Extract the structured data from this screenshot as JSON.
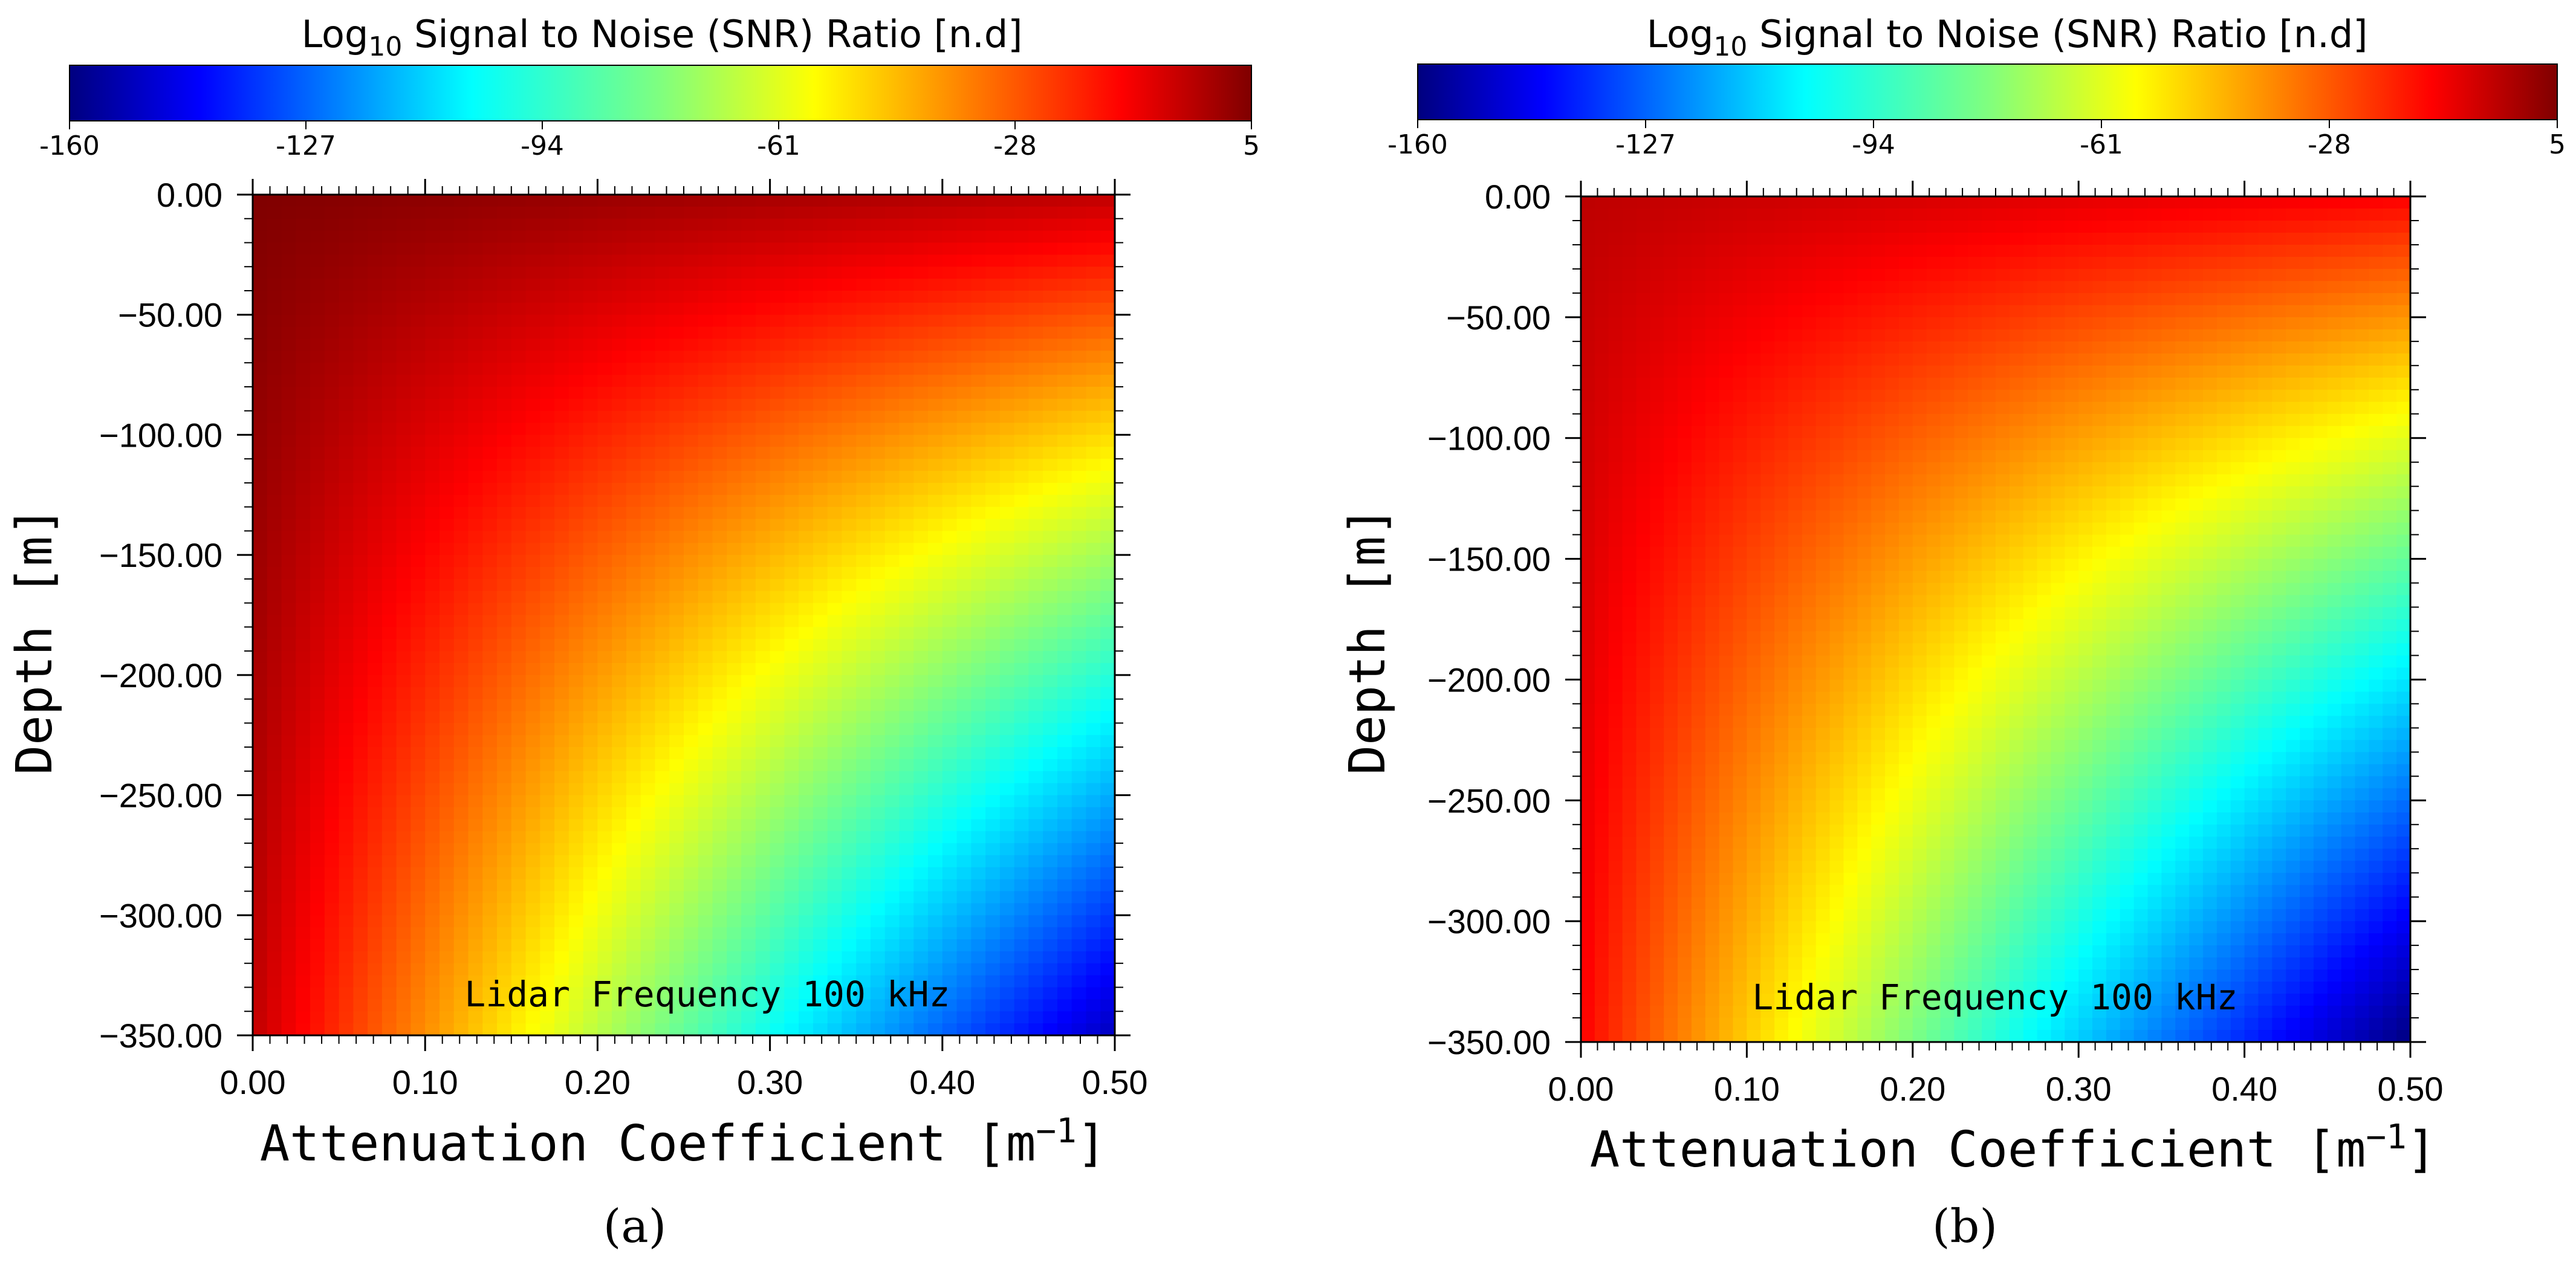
{
  "figure": {
    "panels": [
      {
        "id": "a",
        "caption": "(a)",
        "colorbar": {
          "title_prefix": "Log",
          "title_sub": "10",
          "title_rest": " Signal to Noise (SNR) Ratio [n.d]",
          "min": -160,
          "max": 5,
          "ticks": [
            "-160",
            "-127",
            "-94",
            "-61",
            "-28",
            "5"
          ]
        },
        "ylabel": "Depth [m]",
        "xlabel_main": "Attenuation Coefficient [m",
        "xlabel_sup": "−1",
        "xlabel_end": "]",
        "annotation": "Lidar Frequency 100 kHz"
      },
      {
        "id": "b",
        "caption": "(b)",
        "colorbar": {
          "title_prefix": "Log",
          "title_sub": "10",
          "title_rest": " Signal to Noise (SNR) Ratio [n.d]",
          "min": -160,
          "max": 5,
          "ticks": [
            "-160",
            "-127",
            "-94",
            "-61",
            "-28",
            "5"
          ]
        },
        "ylabel": "Depth [m]",
        "xlabel_main": "Attenuation Coefficient [m",
        "xlabel_sup": "−1",
        "xlabel_end": "]",
        "annotation": "Lidar Frequency 100 kHz"
      }
    ]
  },
  "chart_data": [
    {
      "type": "heatmap",
      "panel": "a",
      "title": "Log10 Signal to Noise (SNR) Ratio [n.d]",
      "xlabel": "Attenuation Coefficient [m−1]",
      "ylabel": "Depth [m]",
      "xlim": [
        0,
        0.5
      ],
      "ylim": [
        -350,
        0
      ],
      "x_ticks": [
        "0.00",
        "0.10",
        "0.20",
        "0.30",
        "0.40",
        "0.50"
      ],
      "y_ticks": [
        "0.00",
        "−50.00",
        "−100.00",
        "−150.00",
        "−200.00",
        "−250.00",
        "−300.00",
        "−350.00"
      ],
      "colormap": "jet",
      "value_range": [
        -160,
        5
      ],
      "approx_snr_at_corners": {
        "x0_y0": 5,
        "x0.5_y0": -5,
        "x0_y-350": -5,
        "x0.5_y-350": -150
      },
      "annotation": "Lidar Frequency 100 kHz"
    },
    {
      "type": "heatmap",
      "panel": "b",
      "title": "Log10 Signal to Noise (SNR) Ratio [n.d]",
      "xlabel": "Attenuation Coefficient [m−1]",
      "ylabel": "Depth [m]",
      "xlim": [
        0,
        0.5
      ],
      "ylim": [
        -350,
        0
      ],
      "x_ticks": [
        "0.00",
        "0.10",
        "0.20",
        "0.30",
        "0.40",
        "0.50"
      ],
      "y_ticks": [
        "0.00",
        "−50.00",
        "−100.00",
        "−150.00",
        "−200.00",
        "−250.00",
        "−300.00",
        "−350.00"
      ],
      "colormap": "jet",
      "value_range": [
        -160,
        5
      ],
      "approx_snr_at_corners": {
        "x0_y0": -5,
        "x0.5_y0": -15,
        "x0_y-350": -15,
        "x0.5_y-350": -160
      },
      "annotation": "Lidar Frequency 100 kHz"
    }
  ],
  "colors": {
    "jet": [
      "#000080",
      "#0000ff",
      "#00ffff",
      "#ffff00",
      "#ff0000",
      "#800000"
    ]
  }
}
